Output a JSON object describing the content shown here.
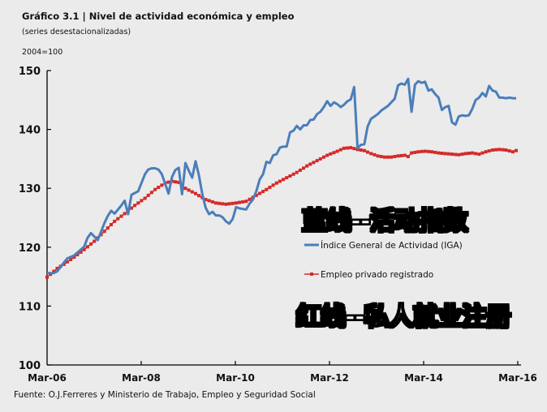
{
  "header": {
    "title": "Gráfico 3.1 | Nivel de actividad económica y empleo",
    "subtitle": "(series desestacionalizadas)",
    "unit": "2004=100"
  },
  "footer": {
    "source": "Fuente: O.J.Ferreres y Ministerio de Trabajo, Empleo y Seguridad Social"
  },
  "annotations": {
    "blue_note": "蓝线--活动指数",
    "red_note": "红线--私人就业注册"
  },
  "legend": {
    "items": [
      {
        "label": "Índice General de Actividad (IGA)",
        "color": "#4a7ebb",
        "marker": "none"
      },
      {
        "label": "Empleo privado registrado",
        "color": "#d42a2a",
        "marker": "square"
      }
    ]
  },
  "colors": {
    "background": "#ebebeb",
    "iga": "#4a7ebb",
    "empleo": "#d42a2a",
    "axis": "#000000"
  },
  "chart_data": {
    "type": "line",
    "title": "Gráfico 3.1 | Nivel de actividad económica y empleo",
    "subtitle": "(series desestacionalizadas)",
    "xlabel": "",
    "ylabel": "2004=100",
    "ylim": [
      100,
      150
    ],
    "yticks": [
      100,
      110,
      120,
      130,
      140,
      150
    ],
    "xticks": [
      "Mar-06",
      "Mar-08",
      "Mar-10",
      "Mar-12",
      "Mar-14",
      "Mar-16"
    ],
    "x_range_months": [
      0,
      120
    ],
    "grid": false,
    "legend_position": "inside right",
    "series": [
      {
        "name": "Índice General de Actividad (IGA)",
        "color": "#4a7ebb",
        "keypoints_month_value": [
          [
            0,
            115.6
          ],
          [
            2,
            115.6
          ],
          [
            3,
            115.9
          ],
          [
            5,
            117.4
          ],
          [
            6,
            118.1
          ],
          [
            8,
            118.6
          ],
          [
            10,
            119.6
          ],
          [
            11,
            120.1
          ],
          [
            12,
            121.6
          ],
          [
            13,
            122.4
          ],
          [
            15,
            121.2
          ],
          [
            17,
            124.1
          ],
          [
            18,
            125.3
          ],
          [
            19,
            126.2
          ],
          [
            20,
            125.7
          ],
          [
            22,
            127.1
          ],
          [
            23,
            127.9
          ],
          [
            24,
            125.6
          ],
          [
            25,
            128.9
          ],
          [
            26,
            129.2
          ],
          [
            27,
            129.5
          ],
          [
            29,
            132.4
          ],
          [
            30,
            133.2
          ],
          [
            31,
            133.4
          ],
          [
            32,
            133.4
          ],
          [
            33,
            133.2
          ],
          [
            34,
            132.4
          ],
          [
            36,
            129.1
          ],
          [
            37,
            131.9
          ],
          [
            38,
            133.1
          ],
          [
            39,
            133.5
          ],
          [
            40,
            129.0
          ],
          [
            41,
            134.3
          ],
          [
            42,
            133.0
          ],
          [
            43,
            131.8
          ],
          [
            44,
            134.6
          ],
          [
            45,
            132.2
          ],
          [
            46,
            129.0
          ],
          [
            47,
            126.7
          ],
          [
            48,
            125.6
          ],
          [
            49,
            126.0
          ],
          [
            50,
            125.4
          ],
          [
            51,
            125.4
          ],
          [
            52,
            125.1
          ],
          [
            53,
            124.4
          ],
          [
            54,
            124.0
          ],
          [
            55,
            124.8
          ],
          [
            56,
            126.8
          ],
          [
            57,
            126.6
          ],
          [
            58,
            126.5
          ],
          [
            59,
            126.4
          ],
          [
            60,
            127.4
          ],
          [
            61,
            128.1
          ],
          [
            62,
            129.5
          ],
          [
            63,
            131.5
          ],
          [
            64,
            132.4
          ],
          [
            65,
            134.5
          ],
          [
            66,
            134.3
          ],
          [
            67,
            135.6
          ],
          [
            68,
            135.8
          ],
          [
            69,
            136.9
          ],
          [
            70,
            137.1
          ],
          [
            71,
            137.1
          ],
          [
            72,
            139.5
          ],
          [
            73,
            139.8
          ],
          [
            74,
            140.6
          ],
          [
            75,
            140.0
          ],
          [
            76,
            140.7
          ],
          [
            77,
            140.7
          ],
          [
            78,
            141.6
          ],
          [
            79,
            141.7
          ],
          [
            80,
            142.6
          ],
          [
            81,
            143.0
          ],
          [
            82,
            143.8
          ],
          [
            83,
            144.8
          ],
          [
            84,
            144.0
          ],
          [
            85,
            144.6
          ],
          [
            86,
            144.3
          ],
          [
            87,
            143.8
          ],
          [
            88,
            144.2
          ],
          [
            89,
            144.8
          ],
          [
            90,
            145.1
          ],
          [
            91,
            147.2
          ],
          [
            92,
            136.8
          ],
          [
            93,
            137.4
          ],
          [
            94,
            137.5
          ],
          [
            95,
            140.5
          ],
          [
            96,
            141.8
          ],
          [
            97,
            142.2
          ],
          [
            98,
            142.6
          ],
          [
            99,
            143.2
          ],
          [
            100,
            143.6
          ],
          [
            101,
            144.0
          ],
          [
            102,
            144.6
          ],
          [
            103,
            145.2
          ],
          [
            104,
            147.5
          ],
          [
            105,
            147.8
          ],
          [
            106,
            147.6
          ],
          [
            107,
            148.6
          ],
          [
            108,
            143.0
          ],
          [
            109,
            147.6
          ],
          [
            110,
            148.2
          ],
          [
            111,
            147.9
          ],
          [
            112,
            148.1
          ],
          [
            113,
            146.6
          ],
          [
            114,
            146.8
          ],
          [
            115,
            146.0
          ],
          [
            116,
            145.4
          ],
          [
            117,
            143.3
          ],
          [
            118,
            143.8
          ],
          [
            119,
            144.0
          ]
        ]
      },
      {
        "name": "Empleo privado registrado",
        "color": "#d42a2a",
        "keypoints_month_value": [
          [
            0,
            114.9
          ],
          [
            3,
            116.4
          ],
          [
            5,
            117.1
          ],
          [
            8,
            118.3
          ],
          [
            11,
            119.6
          ],
          [
            14,
            121.0
          ],
          [
            17,
            122.7
          ],
          [
            20,
            124.4
          ],
          [
            23,
            125.7
          ],
          [
            26,
            127.1
          ],
          [
            29,
            128.3
          ],
          [
            32,
            129.8
          ],
          [
            35,
            130.9
          ],
          [
            37,
            131.2
          ],
          [
            39,
            131.0
          ],
          [
            41,
            130.0
          ],
          [
            44,
            129.1
          ],
          [
            47,
            128.1
          ],
          [
            50,
            127.5
          ],
          [
            53,
            127.3
          ],
          [
            56,
            127.5
          ],
          [
            59,
            127.8
          ],
          [
            62,
            128.8
          ],
          [
            65,
            129.8
          ],
          [
            68,
            130.9
          ],
          [
            71,
            131.8
          ],
          [
            74,
            132.7
          ],
          [
            77,
            133.8
          ],
          [
            80,
            134.7
          ],
          [
            83,
            135.6
          ],
          [
            86,
            136.3
          ],
          [
            88,
            136.8
          ],
          [
            90,
            136.9
          ],
          [
            92,
            136.6
          ],
          [
            94,
            136.4
          ],
          [
            96,
            135.9
          ],
          [
            98,
            135.5
          ],
          [
            100,
            135.3
          ],
          [
            102,
            135.3
          ],
          [
            104,
            135.5
          ],
          [
            106,
            135.6
          ],
          [
            107,
            135.4
          ],
          [
            108,
            136.0
          ],
          [
            110,
            136.2
          ],
          [
            112,
            136.3
          ],
          [
            114,
            136.2
          ],
          [
            116,
            136.0
          ],
          [
            118,
            135.9
          ],
          [
            120,
            135.8
          ]
        ]
      }
    ],
    "iga_tail_keypoints_month_value": [
      [
        120,
        141.2
      ],
      [
        121,
        140.8
      ],
      [
        122,
        142.2
      ],
      [
        123,
        142.4
      ],
      [
        124,
        142.3
      ],
      [
        125,
        142.4
      ],
      [
        126,
        143.5
      ],
      [
        127,
        145.0
      ],
      [
        128,
        145.4
      ],
      [
        129,
        146.2
      ],
      [
        130,
        145.6
      ],
      [
        131,
        147.4
      ],
      [
        132,
        146.6
      ],
      [
        133,
        146.4
      ],
      [
        134,
        145.4
      ],
      [
        135,
        145.4
      ],
      [
        136,
        145.3
      ],
      [
        137,
        145.4
      ],
      [
        138,
        145.3
      ],
      [
        139,
        145.3
      ]
    ],
    "empleo_tail_keypoints_month_value": [
      [
        120,
        135.8
      ],
      [
        122,
        135.7
      ],
      [
        124,
        135.9
      ],
      [
        126,
        136.0
      ],
      [
        128,
        135.8
      ],
      [
        130,
        136.2
      ],
      [
        132,
        136.5
      ],
      [
        134,
        136.6
      ],
      [
        136,
        136.5
      ],
      [
        138,
        136.2
      ],
      [
        139,
        136.4
      ]
    ]
  }
}
